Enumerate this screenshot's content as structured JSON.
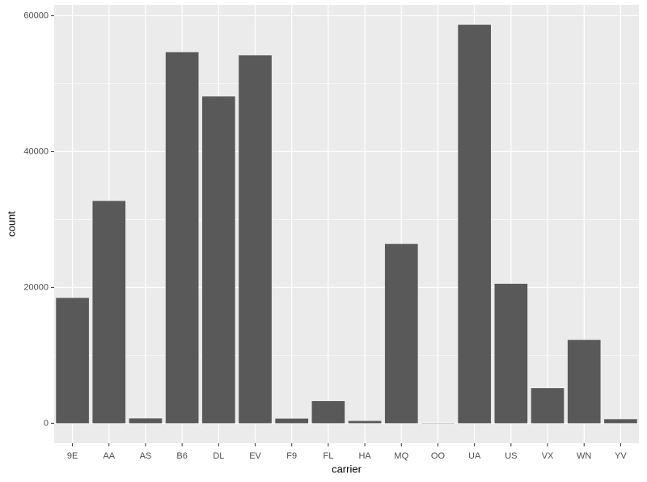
{
  "chart_data": {
    "type": "bar",
    "x_label": "carrier",
    "y_label": "count",
    "categories": [
      "9E",
      "AA",
      "AS",
      "B6",
      "DL",
      "EV",
      "F9",
      "FL",
      "HA",
      "MQ",
      "OO",
      "UA",
      "US",
      "VX",
      "WN",
      "YV"
    ],
    "values": [
      18460,
      32729,
      714,
      54635,
      48110,
      54173,
      685,
      3260,
      342,
      26397,
      32,
      58665,
      20536,
      5162,
      12275,
      601
    ],
    "color": "#595959",
    "ylim": [
      -2933,
      61598
    ],
    "yticks": [
      0,
      20000,
      40000,
      60000
    ],
    "y_minor_grid": [
      10000,
      30000,
      50000
    ],
    "grid": true
  }
}
